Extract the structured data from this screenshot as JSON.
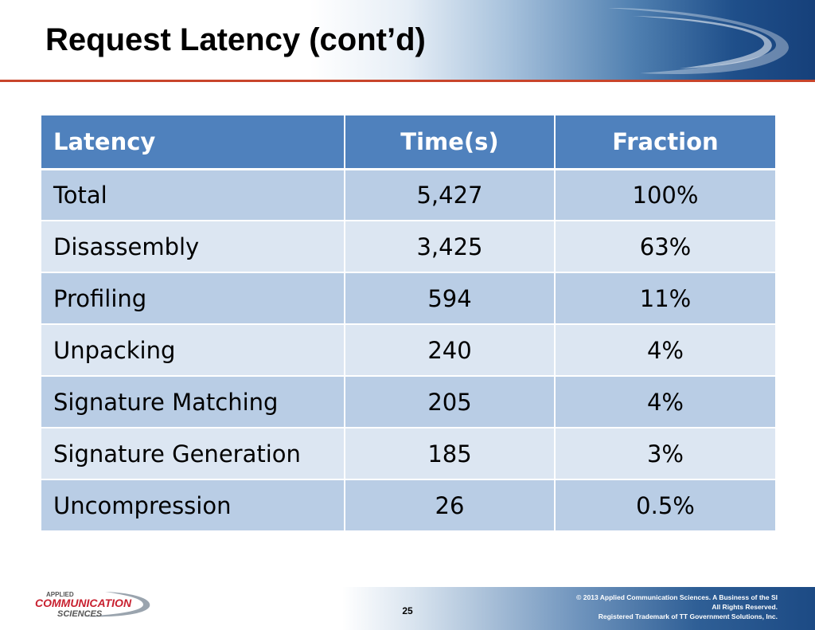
{
  "slide": {
    "title": "Request Latency (cont’d)",
    "page_number": "25"
  },
  "table": {
    "headers": [
      "Latency",
      "Time(s)",
      "Fraction"
    ],
    "rows": [
      [
        "Total",
        "5,427",
        "100%"
      ],
      [
        "Disassembly",
        "3,425",
        "63%"
      ],
      [
        "Profiling",
        "594",
        "11%"
      ],
      [
        "Unpacking",
        "240",
        "4%"
      ],
      [
        "Signature Matching",
        "205",
        "4%"
      ],
      [
        "Signature Generation",
        "185",
        "3%"
      ],
      [
        "Uncompression",
        "26",
        "0.5%"
      ]
    ]
  },
  "footer": {
    "logo_text": [
      "APPLIED",
      "COMMUNICATION",
      "SCIENCES"
    ],
    "copyright_lines": [
      "© 2013 Applied Communication Sciences. A Business of the SI",
      "All Rights Reserved.",
      "Registered Trademark of TT Government Solutions, Inc."
    ]
  },
  "colors": {
    "header_blue": "#4f81bd",
    "row_dark": "#b9cde5",
    "row_light": "#dce6f2",
    "accent_rule": "#c8452b",
    "logo_red": "#c8202f"
  }
}
